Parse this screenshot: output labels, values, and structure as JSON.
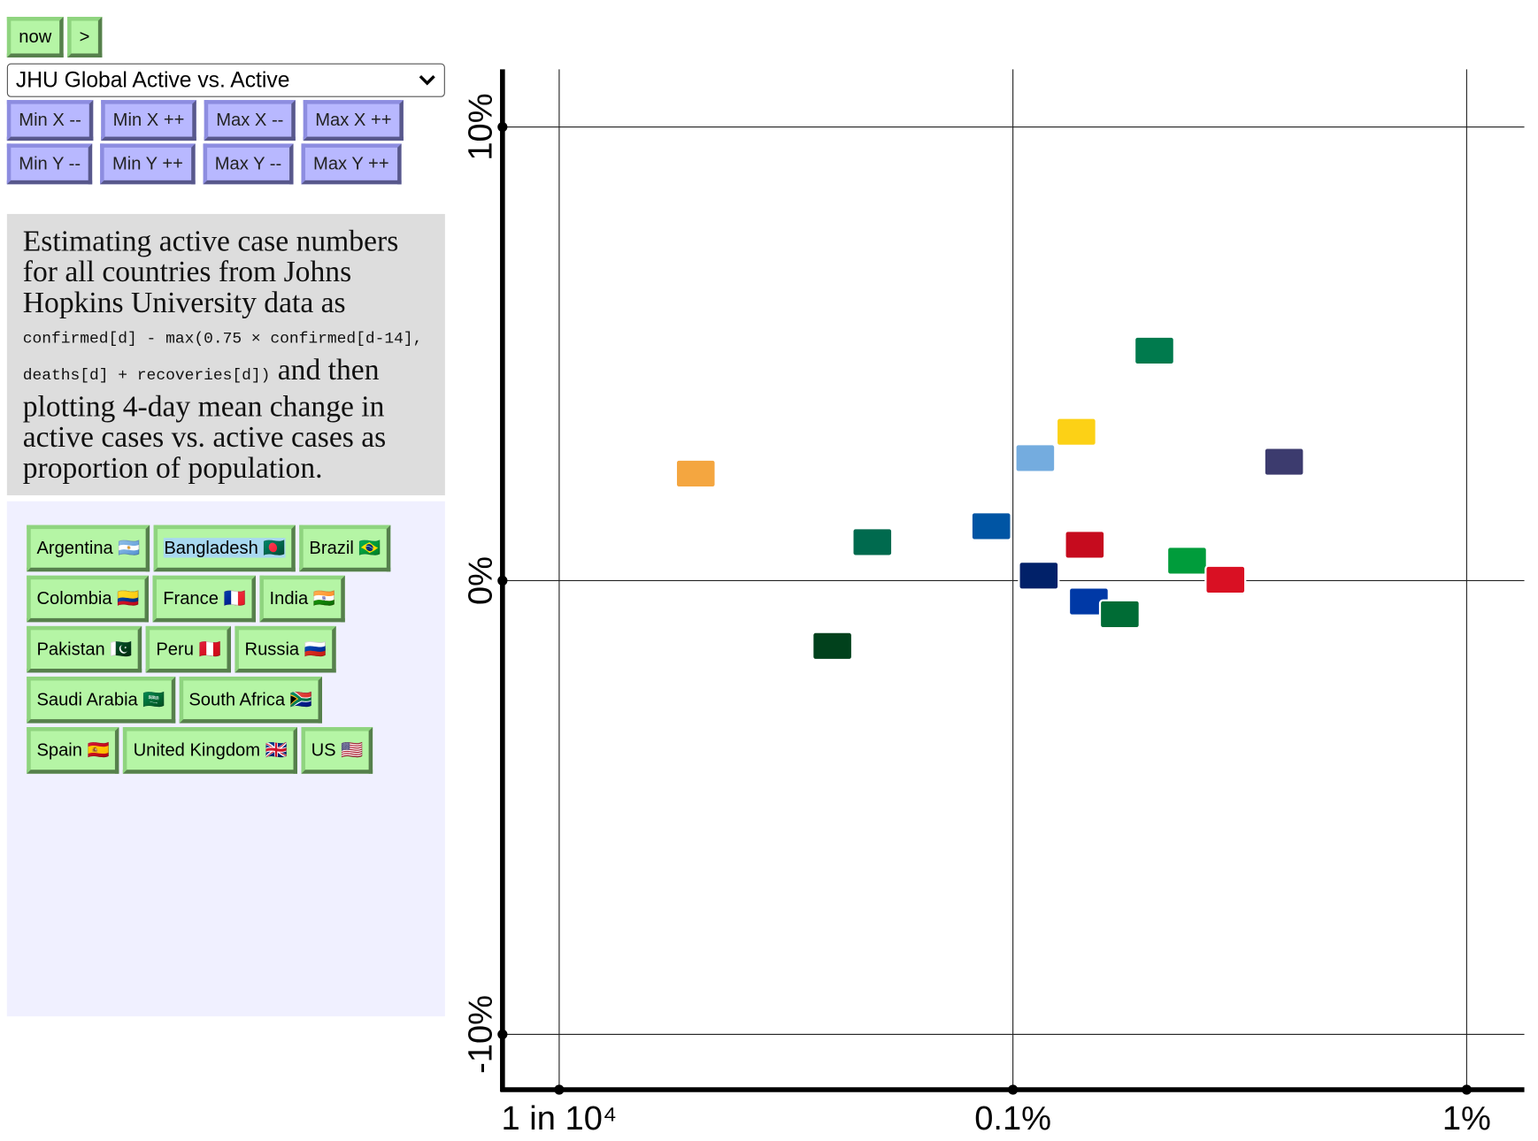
{
  "controls": {
    "buttons": [
      "now",
      ">"
    ],
    "select": "JHU Global Active vs. Active",
    "range_buttons": [
      [
        "Min X --",
        "Min X ++",
        "Max X --",
        "Max X ++"
      ],
      [
        "Min Y --",
        "Min Y ++",
        "Max Y --",
        "Max Y ++"
      ]
    ]
  },
  "description": {
    "text_before": "Estimating active case numbers for all countries from Johns Hopkins University data as ",
    "code": "confirmed[d] - max(0.75 × confirmed[d-14], deaths[d] + recoveries[d])",
    "text_after": " and then plotting 4-day mean change in active cases vs. active cases as proportion of population."
  },
  "countries": [
    "Argentina 🇦🇷",
    "Bangladesh 🇧🇩",
    "Brazil 🇧🇷",
    "Colombia 🇨🇴",
    "France 🇫🇷",
    "India 🇮🇳",
    "Pakistan 🇵🇰",
    "Peru 🇵🇪",
    "Russia 🇷🇺",
    "Saudi Arabia 🇸🇦",
    "South Africa 🇿🇦",
    "Spain 🇪🇸",
    "United Kingdom 🇬🇧",
    "US 🇺🇸"
  ],
  "country_rows": [
    [
      0,
      1,
      2
    ],
    [
      3,
      4,
      5
    ],
    [
      6,
      7,
      8
    ],
    [
      9,
      10
    ],
    [
      11,
      12,
      13
    ]
  ],
  "chart_data": {
    "type": "scatter",
    "log_x": true,
    "grid": true,
    "x": [
      0.112,
      0.049,
      0.242,
      0.138,
      0.0896,
      0.02,
      0.04,
      0.294,
      0.147,
      0.172,
      0.205,
      0.144,
      0.114,
      0.396
    ],
    "y": [
      2.7,
      0.85,
      0.44,
      3.28,
      1.2,
      2.36,
      -1.44,
      0.02,
      -0.46,
      -0.74,
      5.07,
      0.79,
      0.11,
      2.62
    ],
    "colors": [
      "#74acdf",
      "#006a4e",
      "#009c3b",
      "#fcd116",
      "#0055a4",
      "#f4a640",
      "#01411c",
      "#d91023",
      "#0039a6",
      "#006c35",
      "#007a4d",
      "#c60b1e",
      "#012169",
      "#3c3b6e"
    ],
    "xlim": [
      0.0075,
      1.34
    ],
    "ylim": [
      -11.22,
      11.27
    ],
    "xticks": [
      {
        "value": 0.01,
        "label": "1 in 10⁴"
      },
      {
        "value": 0.1,
        "label": "0.1%"
      },
      {
        "value": 1,
        "label": "1%"
      }
    ],
    "yticks": [
      {
        "value": -10,
        "label": "-10%"
      },
      {
        "value": 0,
        "label": "0%"
      },
      {
        "value": 10,
        "label": "10%"
      }
    ]
  }
}
